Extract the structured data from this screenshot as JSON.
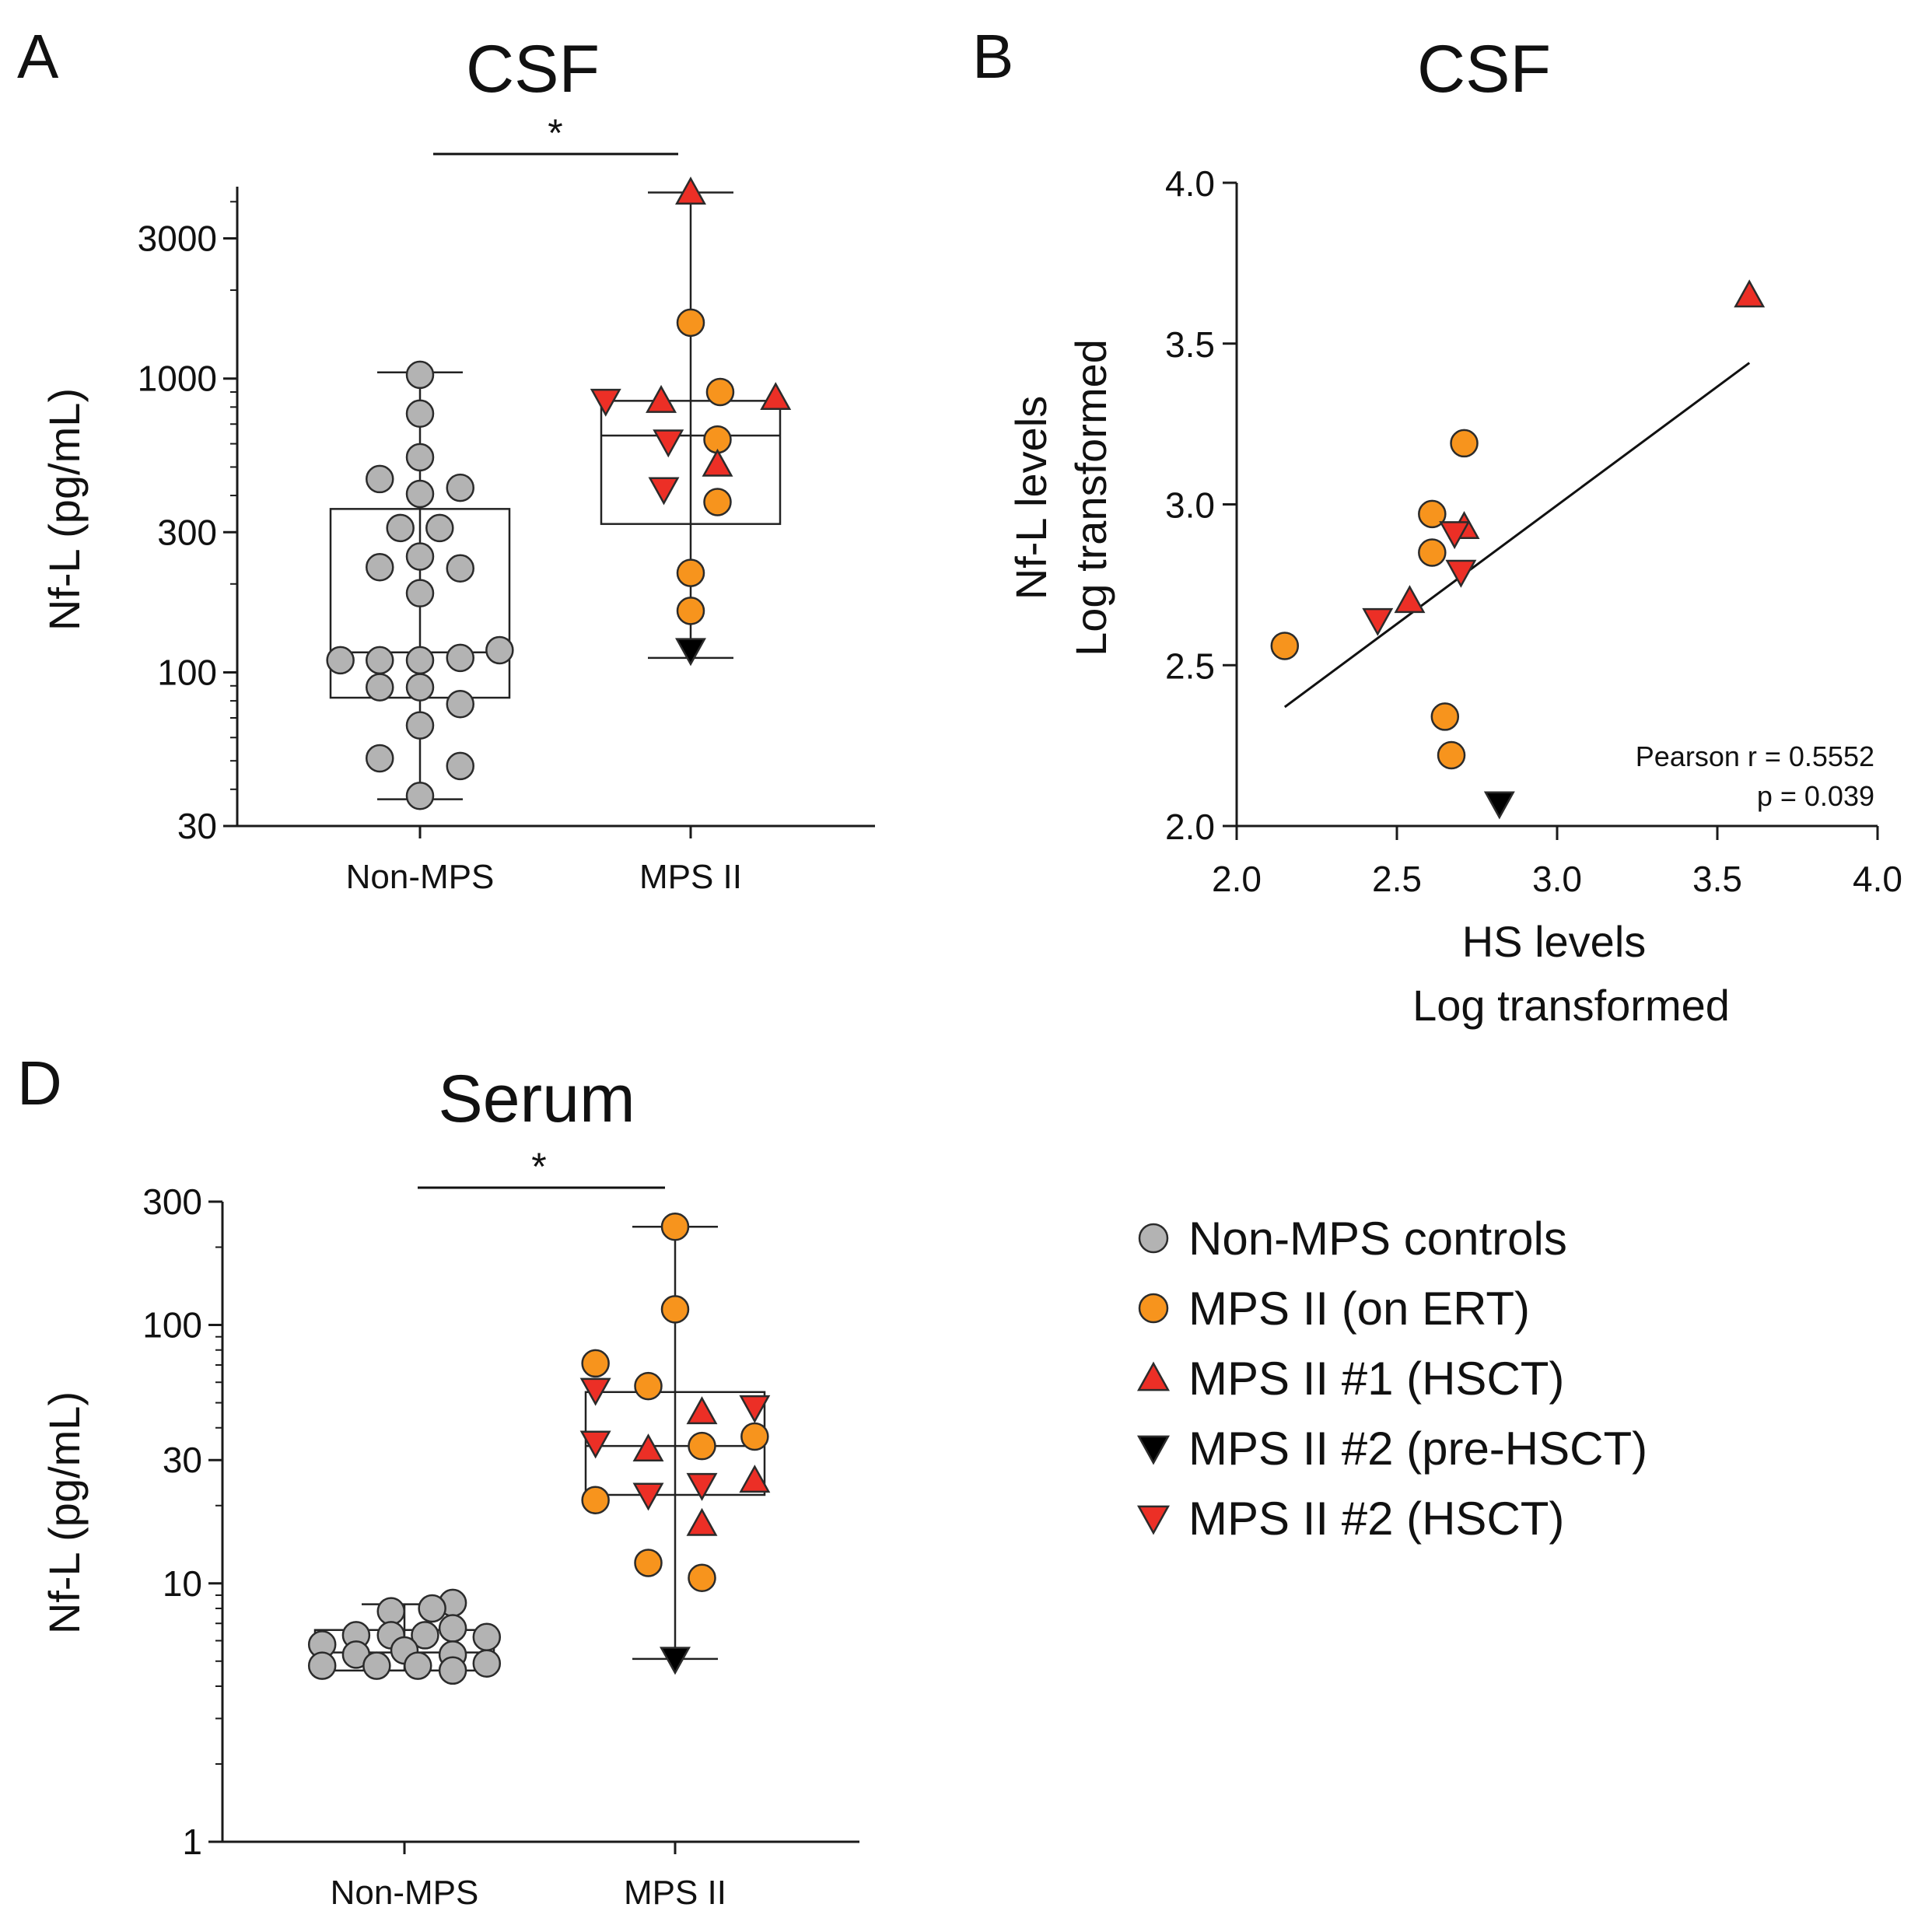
{
  "colors": {
    "non_mps": "#b3b3b3",
    "ert": "#f7941d",
    "hsct1": "#ec2f26",
    "pre_hsct": "#000000",
    "hsct2": "#ec2f26",
    "stroke": "#2b2b2b"
  },
  "panels": {
    "a": {
      "letter": "A"
    },
    "b": {
      "letter": "B"
    },
    "d": {
      "letter": "D"
    }
  },
  "legend": {
    "items": [
      {
        "group": "non_mps",
        "shape": "circle",
        "label": "Non-MPS controls"
      },
      {
        "group": "ert",
        "shape": "circle",
        "label": "MPS II (on ERT)"
      },
      {
        "group": "hsct1",
        "shape": "triangle-up",
        "label": "MPS II #1 (HSCT)"
      },
      {
        "group": "pre_hsct",
        "shape": "triangle-down",
        "label": "MPS II #2 (pre-HSCT)"
      },
      {
        "group": "hsct2",
        "shape": "triangle-down",
        "label": "MPS II #2 (HSCT)"
      }
    ]
  },
  "chart_data": [
    {
      "id": "A",
      "type": "box-scatter",
      "title": "CSF",
      "ylabel": "Nf-L (pg/mL)",
      "yscale": "log",
      "ylim": [
        30,
        4500
      ],
      "yticks": [
        30,
        100,
        300,
        1000,
        3000
      ],
      "ytick_labels": [
        "30",
        "100",
        "300",
        "1000",
        "3000"
      ],
      "categories": [
        "Non-MPS",
        "MPS II"
      ],
      "significance": {
        "label": "*",
        "between": [
          "Non-MPS",
          "MPS II"
        ]
      },
      "boxes": [
        {
          "category": "Non-MPS",
          "min": 37,
          "q1": 82,
          "median": 117,
          "q3": 360,
          "max": 1050
        },
        {
          "category": "MPS II",
          "min": 112,
          "q1": 320,
          "median": 640,
          "q3": 840,
          "max": 4300
        }
      ],
      "points": [
        {
          "category": "Non-MPS",
          "group": "non_mps",
          "value": 1030,
          "jitter": 0.0
        },
        {
          "category": "Non-MPS",
          "group": "non_mps",
          "value": 760,
          "jitter": 0.0
        },
        {
          "category": "Non-MPS",
          "group": "non_mps",
          "value": 540,
          "jitter": 0.0
        },
        {
          "category": "Non-MPS",
          "group": "non_mps",
          "value": 455,
          "jitter": -0.45
        },
        {
          "category": "Non-MPS",
          "group": "non_mps",
          "value": 425,
          "jitter": 0.45
        },
        {
          "category": "Non-MPS",
          "group": "non_mps",
          "value": 405,
          "jitter": 0.0
        },
        {
          "category": "Non-MPS",
          "group": "non_mps",
          "value": 310,
          "jitter": -0.22
        },
        {
          "category": "Non-MPS",
          "group": "non_mps",
          "value": 310,
          "jitter": 0.22
        },
        {
          "category": "Non-MPS",
          "group": "non_mps",
          "value": 248,
          "jitter": 0.0
        },
        {
          "category": "Non-MPS",
          "group": "non_mps",
          "value": 228,
          "jitter": -0.45
        },
        {
          "category": "Non-MPS",
          "group": "non_mps",
          "value": 226,
          "jitter": 0.45
        },
        {
          "category": "Non-MPS",
          "group": "non_mps",
          "value": 186,
          "jitter": 0.0
        },
        {
          "category": "Non-MPS",
          "group": "non_mps",
          "value": 119,
          "jitter": 0.89
        },
        {
          "category": "Non-MPS",
          "group": "non_mps",
          "value": 110,
          "jitter": -0.89
        },
        {
          "category": "Non-MPS",
          "group": "non_mps",
          "value": 110,
          "jitter": -0.45
        },
        {
          "category": "Non-MPS",
          "group": "non_mps",
          "value": 110,
          "jitter": 0.0
        },
        {
          "category": "Non-MPS",
          "group": "non_mps",
          "value": 112,
          "jitter": 0.45
        },
        {
          "category": "Non-MPS",
          "group": "non_mps",
          "value": 89,
          "jitter": -0.45
        },
        {
          "category": "Non-MPS",
          "group": "non_mps",
          "value": 89,
          "jitter": 0.0
        },
        {
          "category": "Non-MPS",
          "group": "non_mps",
          "value": 78,
          "jitter": 0.45
        },
        {
          "category": "Non-MPS",
          "group": "non_mps",
          "value": 66,
          "jitter": 0.0
        },
        {
          "category": "Non-MPS",
          "group": "non_mps",
          "value": 51,
          "jitter": -0.45
        },
        {
          "category": "Non-MPS",
          "group": "non_mps",
          "value": 48,
          "jitter": 0.45
        },
        {
          "category": "Non-MPS",
          "group": "non_mps",
          "value": 38,
          "jitter": 0.0
        },
        {
          "category": "MPS II",
          "group": "hsct1",
          "value": 4300,
          "jitter": 0.0
        },
        {
          "category": "MPS II",
          "group": "ert",
          "value": 1550,
          "jitter": 0.0
        },
        {
          "category": "MPS II",
          "group": "ert",
          "value": 900,
          "jitter": 0.33
        },
        {
          "category": "MPS II",
          "group": "hsct2",
          "value": 840,
          "jitter": -0.95
        },
        {
          "category": "MPS II",
          "group": "hsct1",
          "value": 840,
          "jitter": -0.33
        },
        {
          "category": "MPS II",
          "group": "hsct1",
          "value": 860,
          "jitter": 0.95
        },
        {
          "category": "MPS II",
          "group": "hsct2",
          "value": 610,
          "jitter": -0.25
        },
        {
          "category": "MPS II",
          "group": "ert",
          "value": 620,
          "jitter": 0.3
        },
        {
          "category": "MPS II",
          "group": "hsct1",
          "value": 510,
          "jitter": 0.3
        },
        {
          "category": "MPS II",
          "group": "hsct2",
          "value": 420,
          "jitter": -0.3
        },
        {
          "category": "MPS II",
          "group": "ert",
          "value": 380,
          "jitter": 0.3
        },
        {
          "category": "MPS II",
          "group": "ert",
          "value": 218,
          "jitter": 0.0
        },
        {
          "category": "MPS II",
          "group": "ert",
          "value": 162,
          "jitter": 0.0
        },
        {
          "category": "MPS II",
          "group": "pre_hsct",
          "value": 119,
          "jitter": 0.0
        }
      ]
    },
    {
      "id": "B",
      "type": "scatter",
      "title": "CSF",
      "xlabel_lines": [
        "HS levels",
        "Log transformed"
      ],
      "ylabel_lines": [
        "Nf-L levels",
        "Log transformed"
      ],
      "xlim": [
        2.0,
        4.0
      ],
      "ylim": [
        2.0,
        4.0
      ],
      "xticks": [
        2.0,
        2.5,
        3.0,
        3.5,
        4.0
      ],
      "xtick_labels": [
        "2.0",
        "2.5",
        "3.0",
        "3.5",
        "4.0"
      ],
      "yticks": [
        2.0,
        2.5,
        3.0,
        3.5,
        4.0
      ],
      "ytick_labels": [
        "2.0",
        "2.5",
        "3.0",
        "3.5",
        "4.0"
      ],
      "points": [
        {
          "group": "hsct1",
          "x": 3.6,
          "y": 3.65
        },
        {
          "group": "ert",
          "x": 2.71,
          "y": 3.19
        },
        {
          "group": "ert",
          "x": 2.61,
          "y": 2.97
        },
        {
          "group": "hsct1",
          "x": 2.71,
          "y": 2.93
        },
        {
          "group": "hsct2",
          "x": 2.68,
          "y": 2.91
        },
        {
          "group": "ert",
          "x": 2.61,
          "y": 2.85
        },
        {
          "group": "hsct2",
          "x": 2.7,
          "y": 2.79
        },
        {
          "group": "hsct1",
          "x": 2.54,
          "y": 2.7
        },
        {
          "group": "hsct2",
          "x": 2.44,
          "y": 2.64
        },
        {
          "group": "ert",
          "x": 2.15,
          "y": 2.56
        },
        {
          "group": "ert",
          "x": 2.65,
          "y": 2.34
        },
        {
          "group": "ert",
          "x": 2.67,
          "y": 2.22
        },
        {
          "group": "pre_hsct",
          "x": 2.82,
          "y": 2.07
        }
      ],
      "regression": {
        "x1": 2.15,
        "y1": 2.37,
        "x2": 3.6,
        "y2": 3.44
      },
      "stats": {
        "line1": "Pearson r = 0.5552",
        "line2": "p = 0.039"
      }
    },
    {
      "id": "D",
      "type": "box-scatter",
      "title": "Serum",
      "ylabel": "Nf-L (pg/mL)",
      "yscale": "log",
      "ylim": [
        1,
        300
      ],
      "yticks": [
        1,
        10,
        30,
        100,
        300
      ],
      "ytick_labels": [
        "1",
        "10",
        "30",
        "100",
        "300"
      ],
      "categories": [
        "Non-MPS",
        "MPS II"
      ],
      "significance": {
        "label": "*",
        "between": [
          "Non-MPS",
          "MPS II"
        ]
      },
      "boxes": [
        {
          "category": "Non-MPS",
          "min": 4.6,
          "q1": 4.6,
          "median": 5.4,
          "q3": 6.6,
          "max": 8.3
        },
        {
          "category": "MPS II",
          "min": 5.1,
          "q1": 22,
          "median": 34,
          "q3": 55,
          "max": 240
        }
      ],
      "points": [
        {
          "category": "Non-MPS",
          "group": "non_mps",
          "value": 8.4,
          "jitter": 0.54
        },
        {
          "category": "Non-MPS",
          "group": "non_mps",
          "value": 8.0,
          "jitter": 0.31
        },
        {
          "category": "Non-MPS",
          "group": "non_mps",
          "value": 7.8,
          "jitter": -0.15
        },
        {
          "category": "Non-MPS",
          "group": "non_mps",
          "value": 6.7,
          "jitter": 0.54
        },
        {
          "category": "Non-MPS",
          "group": "non_mps",
          "value": 6.3,
          "jitter": -0.54
        },
        {
          "category": "Non-MPS",
          "group": "non_mps",
          "value": 6.3,
          "jitter": -0.15
        },
        {
          "category": "Non-MPS",
          "group": "non_mps",
          "value": 6.3,
          "jitter": 0.23
        },
        {
          "category": "Non-MPS",
          "group": "non_mps",
          "value": 6.2,
          "jitter": 0.92
        },
        {
          "category": "Non-MPS",
          "group": "non_mps",
          "value": 5.8,
          "jitter": -0.92
        },
        {
          "category": "Non-MPS",
          "group": "non_mps",
          "value": 5.5,
          "jitter": 0.0
        },
        {
          "category": "Non-MPS",
          "group": "non_mps",
          "value": 5.3,
          "jitter": -0.54
        },
        {
          "category": "Non-MPS",
          "group": "non_mps",
          "value": 5.3,
          "jitter": 0.54
        },
        {
          "category": "Non-MPS",
          "group": "non_mps",
          "value": 4.8,
          "jitter": -0.92
        },
        {
          "category": "Non-MPS",
          "group": "non_mps",
          "value": 4.8,
          "jitter": -0.31
        },
        {
          "category": "Non-MPS",
          "group": "non_mps",
          "value": 4.8,
          "jitter": 0.15
        },
        {
          "category": "Non-MPS",
          "group": "non_mps",
          "value": 4.9,
          "jitter": 0.92
        },
        {
          "category": "Non-MPS",
          "group": "non_mps",
          "value": 4.6,
          "jitter": 0.54
        },
        {
          "category": "MPS II",
          "group": "ert",
          "value": 240,
          "jitter": 0.0
        },
        {
          "category": "MPS II",
          "group": "ert",
          "value": 115,
          "jitter": 0.0
        },
        {
          "category": "MPS II",
          "group": "ert",
          "value": 71,
          "jitter": -0.89
        },
        {
          "category": "MPS II",
          "group": "ert",
          "value": 58,
          "jitter": -0.3
        },
        {
          "category": "MPS II",
          "group": "hsct2",
          "value": 56,
          "jitter": -0.89
        },
        {
          "category": "MPS II",
          "group": "hsct1",
          "value": 46,
          "jitter": 0.3
        },
        {
          "category": "MPS II",
          "group": "hsct2",
          "value": 48,
          "jitter": 0.89
        },
        {
          "category": "MPS II",
          "group": "ert",
          "value": 37,
          "jitter": 0.89
        },
        {
          "category": "MPS II",
          "group": "hsct2",
          "value": 35,
          "jitter": -0.89
        },
        {
          "category": "MPS II",
          "group": "ert",
          "value": 34,
          "jitter": 0.3
        },
        {
          "category": "MPS II",
          "group": "hsct1",
          "value": 33,
          "jitter": -0.3
        },
        {
          "category": "MPS II",
          "group": "hsct2",
          "value": 24,
          "jitter": 0.3
        },
        {
          "category": "MPS II",
          "group": "hsct2",
          "value": 22,
          "jitter": -0.3
        },
        {
          "category": "MPS II",
          "group": "hsct1",
          "value": 25,
          "jitter": 0.89
        },
        {
          "category": "MPS II",
          "group": "ert",
          "value": 21,
          "jitter": -0.89
        },
        {
          "category": "MPS II",
          "group": "hsct1",
          "value": 17,
          "jitter": 0.3
        },
        {
          "category": "MPS II",
          "group": "ert",
          "value": 12,
          "jitter": -0.3
        },
        {
          "category": "MPS II",
          "group": "ert",
          "value": 10.5,
          "jitter": 0.3
        },
        {
          "category": "MPS II",
          "group": "pre_hsct",
          "value": 5.1,
          "jitter": 0.0
        }
      ]
    }
  ]
}
